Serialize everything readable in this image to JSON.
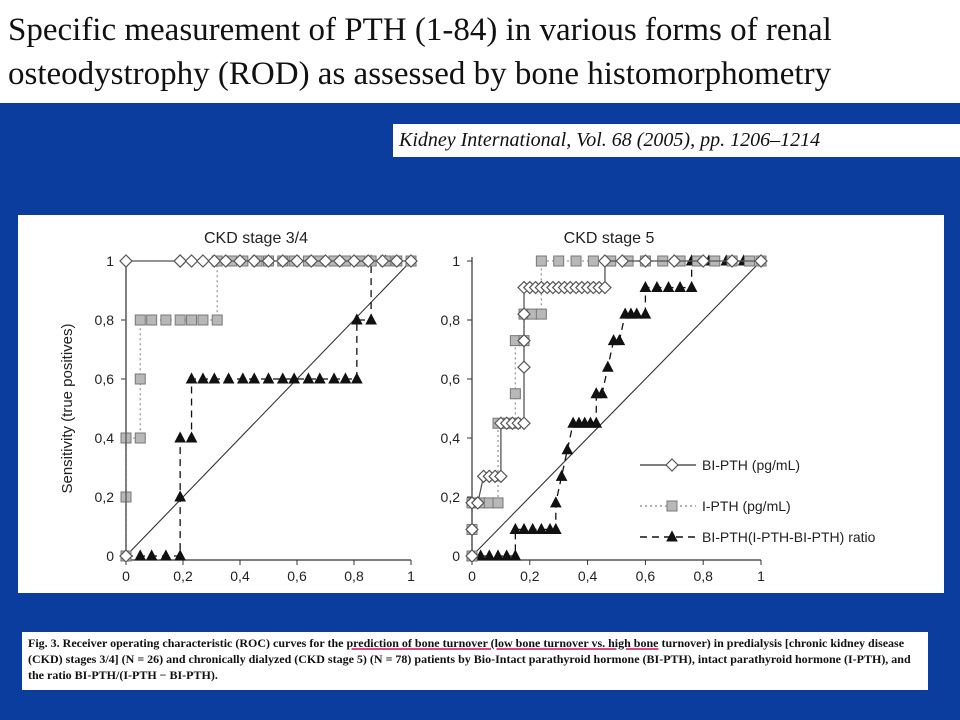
{
  "slide": {
    "title_line1": "Specific measurement of PTH (1-84) in various forms of renal",
    "title_line2": "osteodystrophy (ROD) as assessed by bone histomorphometry",
    "citation": "Kidney International, Vol. 68 (2005), pp. 1206–1214"
  },
  "caption": {
    "part1": "Fig.  3.  Receiver operating characteristic (ROC) curves for the ",
    "underlined": "prediction of bone turnover (low bone turnover vs. high bone",
    "part2": " turnover) in predialysis [chronic kidney disease (CKD) stages 3/4] (N = 26) and chronically dialyzed (CKD stage 5) (N = 78) patients by Bio-Intact parathyroid hormone (BI-PTH), intact parathyroid hormone (I-PTH), and the ratio BI-PTH/(I-PTH − BI-PTH)."
  },
  "colors": {
    "background": "#0b3d9e",
    "bi_pth": "#555555",
    "i_pth": "#999999",
    "ratio": "#111111"
  },
  "chart_data": [
    {
      "type": "line",
      "title": "CKD stage 3/4",
      "ylabel": "Sensitivity (true positives)",
      "xlabel": "",
      "xlim": [
        0,
        1
      ],
      "ylim": [
        0,
        1
      ],
      "x_ticks": [
        "0",
        "0,2",
        "0,4",
        "0,6",
        "0,8",
        "1"
      ],
      "y_ticks": [
        "0",
        "0,2",
        "0,4",
        "0,6",
        "0,8",
        "1"
      ],
      "reference_line": [
        [
          0,
          0
        ],
        [
          1,
          1
        ]
      ],
      "series": [
        {
          "name": "BI-PTH (pg/mL)",
          "marker": "diamond",
          "points": [
            [
              0,
              0
            ],
            [
              0,
              1
            ],
            [
              0.19,
              1
            ],
            [
              0.19,
              1
            ],
            [
              0.23,
              1
            ],
            [
              0.27,
              1
            ],
            [
              0.31,
              1
            ],
            [
              0.35,
              1
            ],
            [
              0.4,
              1
            ],
            [
              0.45,
              1
            ],
            [
              0.5,
              1
            ],
            [
              0.55,
              1
            ],
            [
              0.6,
              1
            ],
            [
              0.65,
              1
            ],
            [
              0.7,
              1
            ],
            [
              0.75,
              1
            ],
            [
              0.8,
              1
            ],
            [
              0.85,
              1
            ],
            [
              0.9,
              1
            ],
            [
              0.95,
              1
            ],
            [
              1,
              1
            ]
          ]
        },
        {
          "name": "I-PTH (pg/mL)",
          "marker": "square",
          "points": [
            [
              0,
              0
            ],
            [
              0,
              0.2
            ],
            [
              0,
              0.4
            ],
            [
              0.05,
              0.4
            ],
            [
              0.05,
              0.6
            ],
            [
              0.05,
              0.8
            ],
            [
              0.09,
              0.8
            ],
            [
              0.14,
              0.8
            ],
            [
              0.19,
              0.8
            ],
            [
              0.23,
              0.8
            ],
            [
              0.27,
              0.8
            ],
            [
              0.32,
              0.8
            ],
            [
              0.32,
              1
            ],
            [
              0.37,
              1
            ],
            [
              0.41,
              1
            ],
            [
              0.46,
              1
            ],
            [
              0.5,
              1
            ],
            [
              0.55,
              1
            ],
            [
              0.59,
              1
            ],
            [
              0.64,
              1
            ],
            [
              0.68,
              1
            ],
            [
              0.73,
              1
            ],
            [
              0.77,
              1
            ],
            [
              0.82,
              1
            ],
            [
              0.86,
              1
            ],
            [
              0.91,
              1
            ],
            [
              0.95,
              1
            ],
            [
              1,
              1
            ]
          ]
        },
        {
          "name": "BI-PTH(I-PTH-BI-PTH) ratio",
          "marker": "triangle",
          "points": [
            [
              0,
              0
            ],
            [
              0.05,
              0
            ],
            [
              0.09,
              0
            ],
            [
              0.14,
              0
            ],
            [
              0.19,
              0
            ],
            [
              0.19,
              0.2
            ],
            [
              0.19,
              0.4
            ],
            [
              0.23,
              0.4
            ],
            [
              0.23,
              0.6
            ],
            [
              0.27,
              0.6
            ],
            [
              0.31,
              0.6
            ],
            [
              0.36,
              0.6
            ],
            [
              0.41,
              0.6
            ],
            [
              0.45,
              0.6
            ],
            [
              0.5,
              0.6
            ],
            [
              0.55,
              0.6
            ],
            [
              0.59,
              0.6
            ],
            [
              0.64,
              0.6
            ],
            [
              0.68,
              0.6
            ],
            [
              0.73,
              0.6
            ],
            [
              0.77,
              0.6
            ],
            [
              0.81,
              0.6
            ],
            [
              0.81,
              0.8
            ],
            [
              0.86,
              0.8
            ],
            [
              0.86,
              1
            ],
            [
              0.91,
              1
            ],
            [
              0.95,
              1
            ],
            [
              1,
              1
            ]
          ]
        }
      ]
    },
    {
      "type": "line",
      "title": "CKD stage 5",
      "xlabel": "",
      "ylabel": "",
      "xlim": [
        0,
        1
      ],
      "ylim": [
        0,
        1
      ],
      "x_ticks": [
        "0",
        "0,2",
        "0,4",
        "0,6",
        "0,8",
        "1"
      ],
      "y_ticks": [
        "0",
        "0,2",
        "0,4",
        "0,6",
        "0,8",
        "1"
      ],
      "reference_line": [
        [
          0,
          0
        ],
        [
          1,
          1
        ]
      ],
      "legend_position": "bottom-right",
      "series": [
        {
          "name": "BI-PTH (pg/mL)",
          "marker": "diamond",
          "points": [
            [
              0,
              0
            ],
            [
              0,
              0.09
            ],
            [
              0,
              0.18
            ],
            [
              0.02,
              0.18
            ],
            [
              0.04,
              0.27
            ],
            [
              0.06,
              0.27
            ],
            [
              0.08,
              0.27
            ],
            [
              0.1,
              0.27
            ],
            [
              0.1,
              0.45
            ],
            [
              0.12,
              0.45
            ],
            [
              0.14,
              0.45
            ],
            [
              0.16,
              0.45
            ],
            [
              0.18,
              0.45
            ],
            [
              0.18,
              0.64
            ],
            [
              0.18,
              0.73
            ],
            [
              0.18,
              0.82
            ],
            [
              0.18,
              0.91
            ],
            [
              0.2,
              0.91
            ],
            [
              0.22,
              0.91
            ],
            [
              0.24,
              0.91
            ],
            [
              0.26,
              0.91
            ],
            [
              0.28,
              0.91
            ],
            [
              0.3,
              0.91
            ],
            [
              0.32,
              0.91
            ],
            [
              0.34,
              0.91
            ],
            [
              0.36,
              0.91
            ],
            [
              0.38,
              0.91
            ],
            [
              0.4,
              0.91
            ],
            [
              0.42,
              0.91
            ],
            [
              0.44,
              0.91
            ],
            [
              0.46,
              0.91
            ],
            [
              0.46,
              1
            ],
            [
              0.52,
              1
            ],
            [
              0.6,
              1
            ],
            [
              0.7,
              1
            ],
            [
              0.8,
              1
            ],
            [
              0.9,
              1
            ],
            [
              1,
              1
            ]
          ]
        },
        {
          "name": "I-PTH (pg/mL)",
          "marker": "square",
          "points": [
            [
              0,
              0
            ],
            [
              0,
              0.09
            ],
            [
              0,
              0.18
            ],
            [
              0.03,
              0.18
            ],
            [
              0.06,
              0.18
            ],
            [
              0.09,
              0.18
            ],
            [
              0.09,
              0.45
            ],
            [
              0.12,
              0.45
            ],
            [
              0.15,
              0.45
            ],
            [
              0.15,
              0.55
            ],
            [
              0.15,
              0.73
            ],
            [
              0.18,
              0.73
            ],
            [
              0.18,
              0.82
            ],
            [
              0.21,
              0.82
            ],
            [
              0.24,
              0.82
            ],
            [
              0.24,
              1
            ],
            [
              0.3,
              1
            ],
            [
              0.36,
              1
            ],
            [
              0.42,
              1
            ],
            [
              0.48,
              1
            ],
            [
              0.54,
              1
            ],
            [
              0.6,
              1
            ],
            [
              0.66,
              1
            ],
            [
              0.72,
              1
            ],
            [
              0.78,
              1
            ],
            [
              0.84,
              1
            ],
            [
              0.9,
              1
            ],
            [
              0.96,
              1
            ],
            [
              1,
              1
            ]
          ]
        },
        {
          "name": "BI-PTH(I-PTH-BI-PTH) ratio",
          "marker": "triangle",
          "points": [
            [
              0,
              0
            ],
            [
              0.03,
              0
            ],
            [
              0.06,
              0
            ],
            [
              0.09,
              0
            ],
            [
              0.12,
              0
            ],
            [
              0.15,
              0
            ],
            [
              0.15,
              0.09
            ],
            [
              0.18,
              0.09
            ],
            [
              0.21,
              0.09
            ],
            [
              0.24,
              0.09
            ],
            [
              0.27,
              0.09
            ],
            [
              0.29,
              0.09
            ],
            [
              0.29,
              0.18
            ],
            [
              0.31,
              0.27
            ],
            [
              0.33,
              0.36
            ],
            [
              0.35,
              0.45
            ],
            [
              0.37,
              0.45
            ],
            [
              0.39,
              0.45
            ],
            [
              0.41,
              0.45
            ],
            [
              0.43,
              0.45
            ],
            [
              0.43,
              0.55
            ],
            [
              0.45,
              0.55
            ],
            [
              0.47,
              0.64
            ],
            [
              0.49,
              0.73
            ],
            [
              0.51,
              0.73
            ],
            [
              0.53,
              0.82
            ],
            [
              0.55,
              0.82
            ],
            [
              0.57,
              0.82
            ],
            [
              0.6,
              0.82
            ],
            [
              0.6,
              0.91
            ],
            [
              0.64,
              0.91
            ],
            [
              0.68,
              0.91
            ],
            [
              0.72,
              0.91
            ],
            [
              0.76,
              0.91
            ],
            [
              0.76,
              1
            ],
            [
              0.82,
              1
            ],
            [
              0.88,
              1
            ],
            [
              0.94,
              1
            ],
            [
              1,
              1
            ]
          ]
        }
      ]
    }
  ]
}
